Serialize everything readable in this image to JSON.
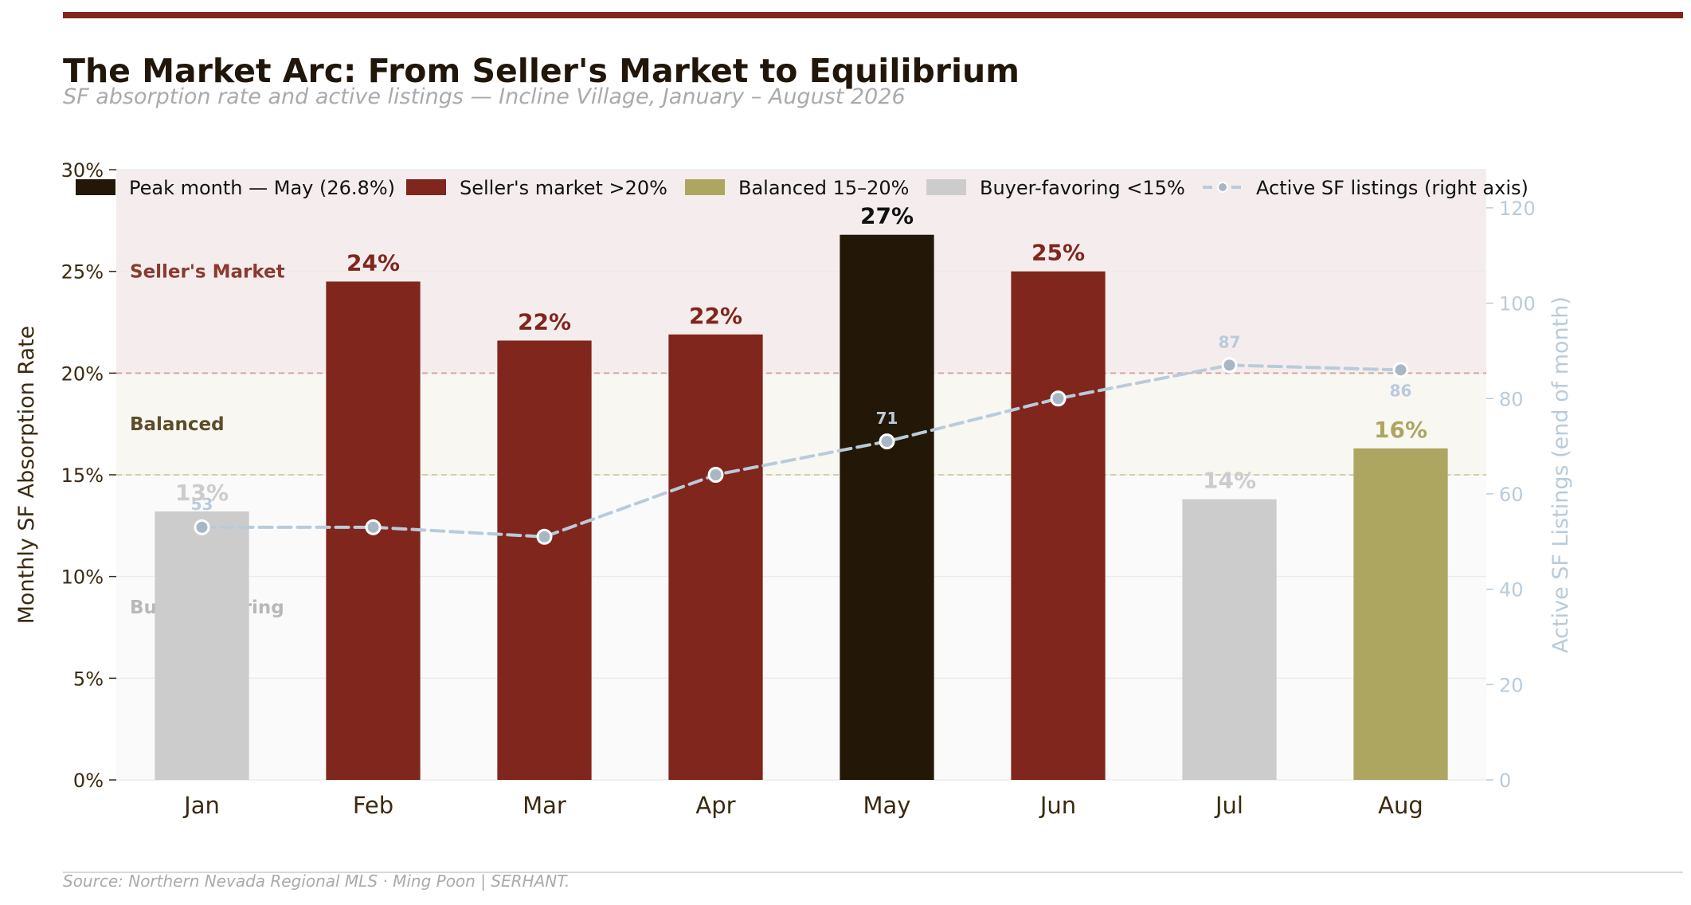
{
  "title": "The Market Arc: From Seller's Market to Equilibrium",
  "subtitle": "SF absorption rate and active listings — Incline Village, January – August 2026",
  "source": "Source: Northern Nevada Regional MLS  ·  Ming Poon | SERHANT.",
  "legend": {
    "items": [
      {
        "label": "Peak month — May (26.8%)",
        "color": "#231707",
        "kind": "box"
      },
      {
        "label": "Seller's market  >20%",
        "color": "#80261c",
        "kind": "box"
      },
      {
        "label": "Balanced  15–20%",
        "color": "#aca661",
        "kind": "box"
      },
      {
        "label": "Buyer-favoring  <15%",
        "color": "#cccccc",
        "kind": "box"
      },
      {
        "label": "Active SF listings (right axis)",
        "color": "#b9cbdb",
        "kind": "line"
      }
    ]
  },
  "zones": [
    {
      "label": "Seller's Market",
      "color": "#8b3a30",
      "y_from": 20,
      "y_to": 30,
      "fill": "#f5eded"
    },
    {
      "label": "Balanced",
      "color": "#5c4d2a",
      "y_from": 15,
      "y_to": 20,
      "fill": "#f8f7f2"
    },
    {
      "label": "Buyer-favoring",
      "color": "#b8b8b8",
      "y_from": 0,
      "y_to": 15,
      "fill": "#fafafa"
    }
  ],
  "chart_data": {
    "type": "bar",
    "title": "The Market Arc: From Seller's Market to Equilibrium",
    "subtitle": "SF absorption rate and active listings — Incline Village, January – August 2026",
    "categories": [
      "Jan",
      "Feb",
      "Mar",
      "Apr",
      "May",
      "Jun",
      "Jul",
      "Aug"
    ],
    "ylabel": "Monthly SF Absorption Rate",
    "y2label": "Active SF Listings (end of month)",
    "ylim": [
      0,
      30
    ],
    "y2lim": [
      0,
      128
    ],
    "yticks": [
      "0%",
      "5%",
      "10%",
      "15%",
      "20%",
      "25%",
      "30%"
    ],
    "yticks_values": [
      0,
      5,
      10,
      15,
      20,
      25,
      30
    ],
    "y2ticks": [
      0,
      20,
      40,
      60,
      80,
      100,
      120
    ],
    "thresholds": [
      15,
      20
    ],
    "series": [
      {
        "name": "Monthly SF Absorption Rate",
        "type": "bar",
        "values": [
          13.2,
          24.5,
          21.6,
          21.9,
          26.8,
          25.0,
          13.8,
          16.3
        ],
        "labels": [
          "13%",
          "24%",
          "22%",
          "22%",
          "27%",
          "25%",
          "14%",
          "16%"
        ],
        "colors": [
          "#cccccc",
          "#80261c",
          "#80261c",
          "#80261c",
          "#231707",
          "#80261c",
          "#cccccc",
          "#aca661"
        ],
        "label_colors": [
          "#cccccc",
          "#80261c",
          "#80261c",
          "#80261c",
          "#111111",
          "#80261c",
          "#cccccc",
          "#aca661"
        ]
      },
      {
        "name": "Active SF listings (right axis)",
        "type": "line",
        "axis": "right",
        "values": [
          53,
          53,
          51,
          64,
          71,
          80,
          87,
          86
        ],
        "labels": [
          "53",
          "",
          "",
          "",
          "71",
          "",
          "87",
          "86"
        ]
      }
    ],
    "legend_position": "top"
  }
}
